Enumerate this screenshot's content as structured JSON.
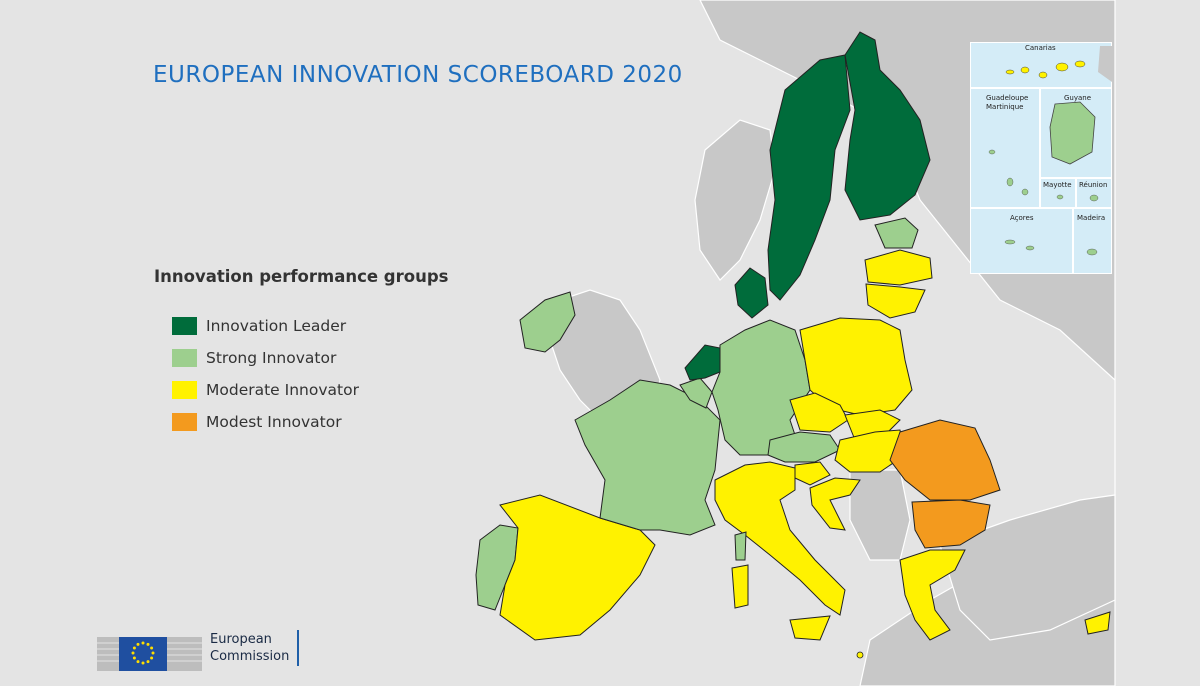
{
  "title": "EUROPEAN INNOVATION SCOREBOARD 2020",
  "legend": {
    "title": "Innovation performance groups",
    "items": [
      {
        "label": "Innovation Leader",
        "color": "#006c3b"
      },
      {
        "label": "Strong Innovator",
        "color": "#9dcf8e"
      },
      {
        "label": "Moderate Innovator",
        "color": "#fff200"
      },
      {
        "label": "Modest Innovator",
        "color": "#f39a1e"
      }
    ]
  },
  "insets": {
    "canarias": "Canarias",
    "guadeloupe": "Guadeloupe",
    "martinique": "Martinique",
    "guyane": "Guyane",
    "mayotte": "Mayotte",
    "reunion": "Réunion",
    "acores": "Açores",
    "madeira": "Madeira"
  },
  "logo": {
    "line1": "European",
    "line2": "Commission"
  },
  "colors": {
    "sea": "#e4e4e4",
    "land_non_eu": "#c8c8c8",
    "inset_sea": "#d4ecf7",
    "title": "#1f6fbf"
  }
}
